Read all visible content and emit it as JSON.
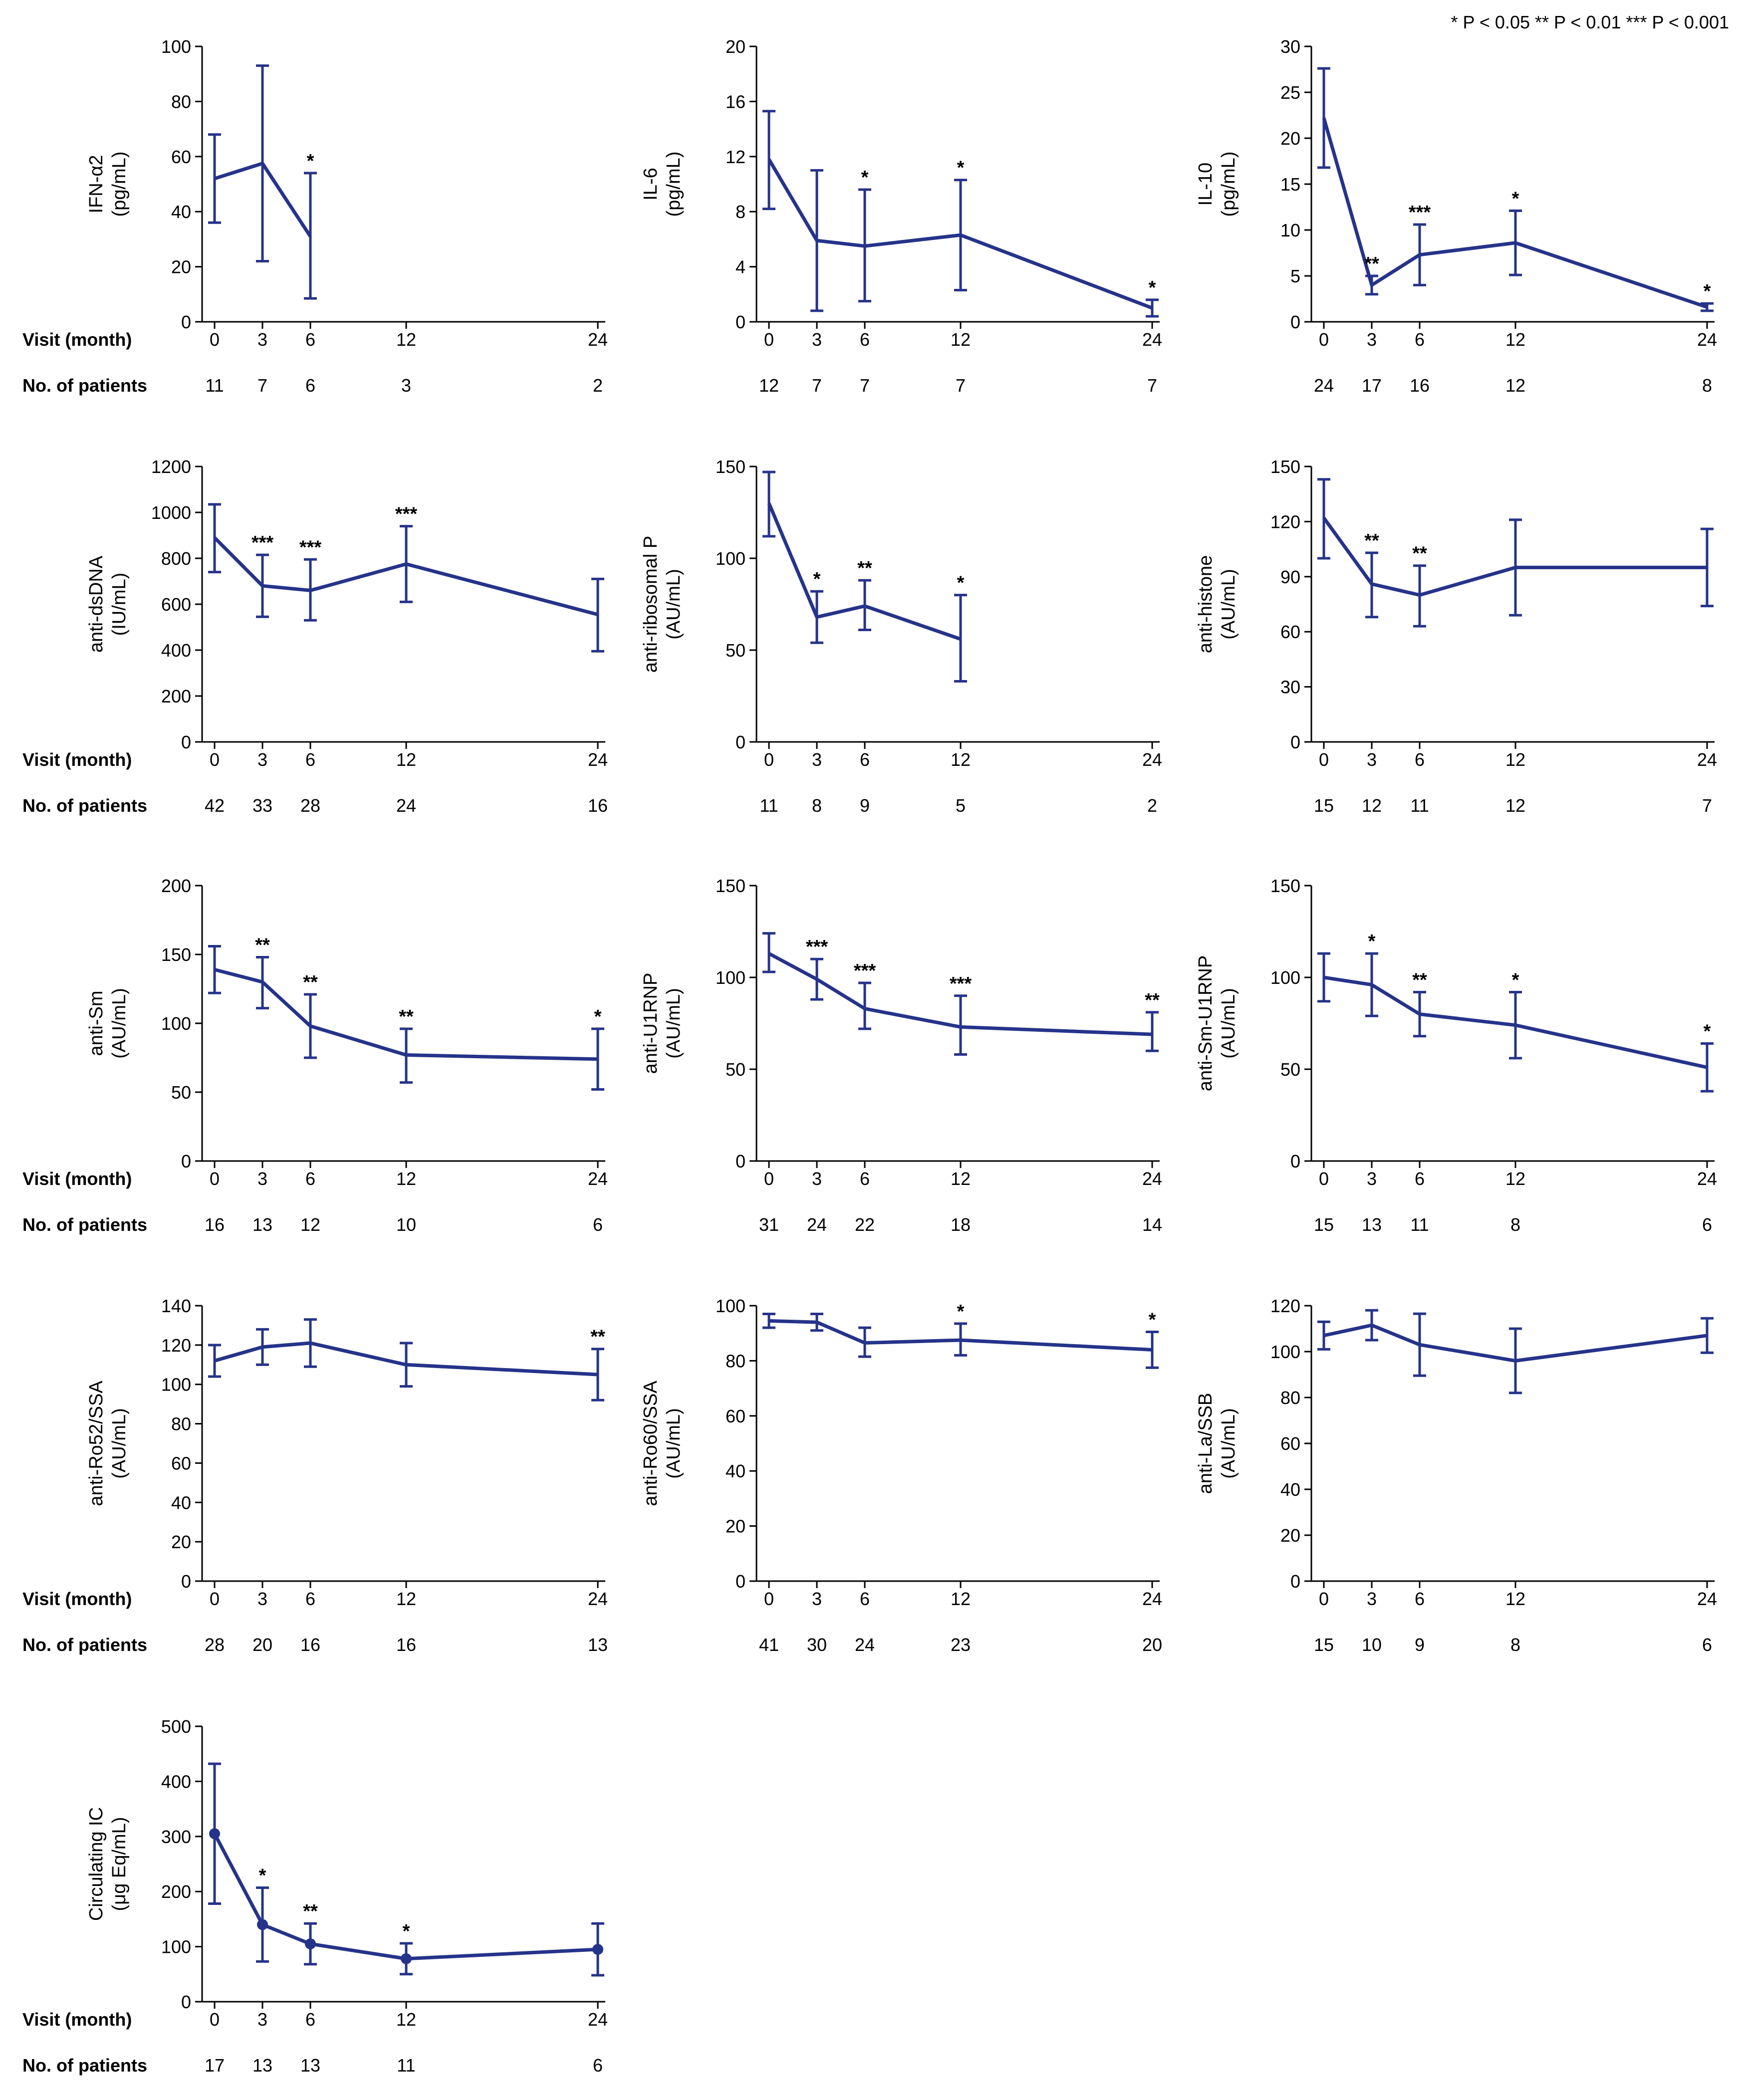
{
  "legend_note": "* P < 0.05  ** P < 0.01  *** P < 0.001",
  "colors": {
    "series": "#25338a",
    "axis": "#000000"
  },
  "labels": {
    "visit": "Visit (month)",
    "patients": "No. of patients"
  },
  "chart_data": [
    {
      "type": "line",
      "title": "",
      "ylabel_1": "IFN-α2",
      "ylabel_2": "(pg/mL)",
      "x": [
        0,
        3,
        6,
        12,
        24
      ],
      "ylim": [
        0,
        100
      ],
      "yticks": [
        0,
        20,
        40,
        60,
        80,
        100
      ],
      "series": [
        {
          "name": "IFN-α2",
          "values": [
            52,
            57.5,
            31,
            null,
            null
          ],
          "err_low": [
            36,
            22,
            8.5,
            null,
            null
          ],
          "err_high": [
            68,
            93,
            54,
            null,
            null
          ]
        }
      ],
      "significance": [
        "",
        "",
        "*",
        "",
        ""
      ],
      "patients": [
        "11",
        "7",
        "6",
        "3",
        "2"
      ],
      "markers": false
    },
    {
      "type": "line",
      "ylabel_1": "IL-6",
      "ylabel_2": "(pg/mL)",
      "x": [
        0,
        3,
        6,
        12,
        24
      ],
      "ylim": [
        0,
        20
      ],
      "yticks": [
        0,
        4,
        8,
        12,
        16,
        20
      ],
      "series": [
        {
          "name": "IL-6",
          "values": [
            11.8,
            5.9,
            5.5,
            6.3,
            1.0
          ],
          "err_low": [
            8.2,
            0.8,
            1.5,
            2.3,
            0.4
          ],
          "err_high": [
            15.3,
            11.0,
            9.6,
            10.3,
            1.6
          ]
        }
      ],
      "significance": [
        "",
        "",
        "*",
        "*",
        "*"
      ],
      "patients": [
        "12",
        "7",
        "7",
        "7",
        "7"
      ],
      "markers": false
    },
    {
      "type": "line",
      "ylabel_1": "IL-10",
      "ylabel_2": "(pg/mL)",
      "x": [
        0,
        3,
        6,
        12,
        24
      ],
      "ylim": [
        0,
        30
      ],
      "yticks": [
        0,
        5,
        10,
        15,
        20,
        25,
        30
      ],
      "series": [
        {
          "name": "IL-10",
          "values": [
            22.2,
            4.0,
            7.3,
            8.6,
            1.6
          ],
          "err_low": [
            16.8,
            3.0,
            4.0,
            5.1,
            1.2
          ],
          "err_high": [
            27.6,
            5.0,
            10.6,
            12.1,
            2.0
          ]
        }
      ],
      "significance": [
        "",
        "**",
        "***",
        "*",
        "*"
      ],
      "patients": [
        "24",
        "17",
        "16",
        "12",
        "8"
      ],
      "markers": false
    },
    {
      "type": "line",
      "ylabel_1": "anti-dsDNA",
      "ylabel_2": "(IU/mL)",
      "x": [
        0,
        3,
        6,
        12,
        24
      ],
      "ylim": [
        0,
        1200
      ],
      "yticks": [
        0,
        200,
        400,
        600,
        800,
        1000,
        1200
      ],
      "series": [
        {
          "name": "anti-dsDNA",
          "values": [
            890,
            680,
            660,
            775,
            555
          ],
          "err_low": [
            740,
            545,
            530,
            610,
            395
          ],
          "err_high": [
            1035,
            815,
            795,
            940,
            710
          ]
        }
      ],
      "significance": [
        "",
        "***",
        "***",
        "***",
        ""
      ],
      "patients": [
        "42",
        "33",
        "28",
        "24",
        "16"
      ],
      "markers": false
    },
    {
      "type": "line",
      "ylabel_1": "anti-ribosomal P",
      "ylabel_2": "(AU/mL)",
      "x": [
        0,
        3,
        6,
        12,
        24
      ],
      "ylim": [
        0,
        150
      ],
      "yticks": [
        0,
        50,
        100,
        150
      ],
      "series": [
        {
          "name": "anti-ribosomal P",
          "values": [
            130,
            68,
            74,
            56,
            null
          ],
          "err_low": [
            112,
            54,
            61,
            33,
            null
          ],
          "err_high": [
            147,
            82,
            88,
            80,
            null
          ]
        }
      ],
      "significance": [
        "",
        "*",
        "**",
        "*",
        ""
      ],
      "patients": [
        "11",
        "8",
        "9",
        "5",
        "2"
      ],
      "markers": false
    },
    {
      "type": "line",
      "ylabel_1": "anti-histone",
      "ylabel_2": "(AU/mL)",
      "x": [
        0,
        3,
        6,
        12,
        24
      ],
      "ylim": [
        0,
        150
      ],
      "yticks": [
        0,
        30,
        60,
        90,
        120,
        150
      ],
      "series": [
        {
          "name": "anti-histone",
          "values": [
            122,
            86,
            80,
            95,
            95
          ],
          "err_low": [
            100,
            68,
            63,
            69,
            74
          ],
          "err_high": [
            143,
            103,
            96,
            121,
            116
          ]
        }
      ],
      "significance": [
        "",
        "**",
        "**",
        "",
        ""
      ],
      "patients": [
        "15",
        "12",
        "11",
        "12",
        "7"
      ],
      "markers": false
    },
    {
      "type": "line",
      "ylabel_1": "anti-Sm",
      "ylabel_2": "(AU/mL)",
      "x": [
        0,
        3,
        6,
        12,
        24
      ],
      "ylim": [
        0,
        200
      ],
      "yticks": [
        0,
        50,
        100,
        150,
        200
      ],
      "series": [
        {
          "name": "anti-Sm",
          "values": [
            139,
            130,
            98,
            77,
            74
          ],
          "err_low": [
            122,
            111,
            75,
            57,
            52
          ],
          "err_high": [
            156,
            148,
            121,
            96,
            96
          ]
        }
      ],
      "significance": [
        "",
        "**",
        "**",
        "**",
        "*"
      ],
      "patients": [
        "16",
        "13",
        "12",
        "10",
        "6"
      ],
      "markers": false
    },
    {
      "type": "line",
      "ylabel_1": "anti-U1RNP",
      "ylabel_2": "(AU/mL)",
      "x": [
        0,
        3,
        6,
        12,
        24
      ],
      "ylim": [
        0,
        150
      ],
      "yticks": [
        0,
        50,
        100,
        150
      ],
      "series": [
        {
          "name": "anti-U1RNP",
          "values": [
            113,
            99,
            83,
            73,
            69
          ],
          "err_low": [
            103,
            88,
            72,
            58,
            60
          ],
          "err_high": [
            124,
            110,
            97,
            90,
            81
          ]
        }
      ],
      "significance": [
        "",
        "***",
        "***",
        "***",
        "**"
      ],
      "patients": [
        "31",
        "24",
        "22",
        "18",
        "14"
      ],
      "markers": false
    },
    {
      "type": "line",
      "ylabel_1": "anti-Sm-U1RNP",
      "ylabel_2": "(AU/mL)",
      "x": [
        0,
        3,
        6,
        12,
        24
      ],
      "ylim": [
        0,
        150
      ],
      "yticks": [
        0,
        50,
        100,
        150
      ],
      "series": [
        {
          "name": "anti-Sm-U1RNP",
          "values": [
            100,
            96,
            80,
            74,
            51
          ],
          "err_low": [
            87,
            79,
            68,
            56,
            38
          ],
          "err_high": [
            113,
            113,
            92,
            92,
            64
          ]
        }
      ],
      "significance": [
        "",
        "*",
        "**",
        "*",
        "*"
      ],
      "patients": [
        "15",
        "13",
        "11",
        "8",
        "6"
      ],
      "markers": false
    },
    {
      "type": "line",
      "ylabel_1": "anti-Ro52/SSA",
      "ylabel_2": "(AU/mL)",
      "x": [
        0,
        3,
        6,
        12,
        24
      ],
      "ylim": [
        0,
        140
      ],
      "yticks": [
        0,
        20,
        40,
        60,
        80,
        100,
        120,
        140
      ],
      "series": [
        {
          "name": "anti-Ro52/SSA",
          "values": [
            112,
            119,
            121,
            110,
            105
          ],
          "err_low": [
            104,
            110,
            109,
            99,
            92
          ],
          "err_high": [
            120,
            128,
            133,
            121,
            118
          ]
        }
      ],
      "significance": [
        "",
        "",
        "",
        "",
        "**"
      ],
      "patients": [
        "28",
        "20",
        "16",
        "16",
        "13"
      ],
      "markers": false
    },
    {
      "type": "line",
      "ylabel_1": "anti-Ro60/SSA",
      "ylabel_2": "(AU/mL)",
      "x": [
        0,
        3,
        6,
        12,
        24
      ],
      "ylim": [
        0,
        100
      ],
      "yticks": [
        0,
        20,
        40,
        60,
        80,
        100
      ],
      "series": [
        {
          "name": "anti-Ro60/SSA",
          "values": [
            94.5,
            94,
            86.5,
            87.5,
            84
          ],
          "err_low": [
            92,
            91,
            81.5,
            82,
            77.5
          ],
          "err_high": [
            97,
            97,
            92,
            93.5,
            90.5
          ]
        }
      ],
      "significance": [
        "",
        "",
        "",
        "*",
        "*"
      ],
      "patients": [
        "41",
        "30",
        "24",
        "23",
        "20"
      ],
      "markers": false
    },
    {
      "type": "line",
      "ylabel_1": "anti-La/SSB",
      "ylabel_2": "(AU/mL)",
      "x": [
        0,
        3,
        6,
        12,
        24
      ],
      "ylim": [
        0,
        120
      ],
      "yticks": [
        0,
        20,
        40,
        60,
        80,
        100,
        120
      ],
      "series": [
        {
          "name": "anti-La/SSB",
          "values": [
            107,
            111.5,
            103,
            96,
            107
          ],
          "err_low": [
            101,
            105,
            89.5,
            82,
            99.5
          ],
          "err_high": [
            113,
            118,
            116.5,
            110,
            114.5
          ]
        }
      ],
      "significance": [
        "",
        "",
        "",
        "",
        ""
      ],
      "patients": [
        "15",
        "10",
        "9",
        "8",
        "6"
      ],
      "markers": false
    },
    {
      "type": "line",
      "ylabel_1": "Circulating IC",
      "ylabel_2": "(μg Eq/mL)",
      "x": [
        0,
        3,
        6,
        12,
        24
      ],
      "ylim": [
        0,
        500
      ],
      "yticks": [
        0,
        100,
        200,
        300,
        400,
        500
      ],
      "series": [
        {
          "name": "Circulating IC",
          "values": [
            305,
            140,
            105,
            78,
            95
          ],
          "err_low": [
            178,
            73,
            68,
            50,
            48
          ],
          "err_high": [
            432,
            207,
            142,
            106,
            142
          ]
        }
      ],
      "significance": [
        "",
        "*",
        "**",
        "*",
        ""
      ],
      "patients": [
        "17",
        "13",
        "13",
        "11",
        "6"
      ],
      "markers": true
    }
  ]
}
